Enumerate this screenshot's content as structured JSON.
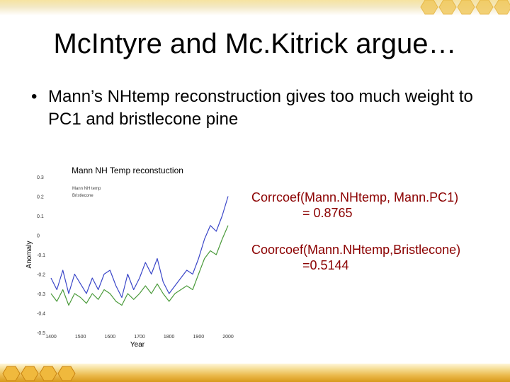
{
  "slide": {
    "title": "McIntyre and Mc.Kitrick argue…",
    "bullet": {
      "marker": "•",
      "text": "Mann’s NHtemp reconstruction gives too much weight to PC1 and bristlecone pine"
    },
    "stats": [
      {
        "label": "Corrcoef(Mann.NHtemp, Mann.PC1)",
        "value": "= 0.8765"
      },
      {
        "label": "Coorcoef(Mann.NHtemp,Bristlecone)",
        "value": "=0.5144"
      }
    ]
  },
  "chart_data": {
    "type": "line",
    "title": "Mann NH Temp reconstuction",
    "xlabel": "Year",
    "ylabel": "Anomaly",
    "xlim": [
      1400,
      2000
    ],
    "ylim": [
      -0.5,
      0.3
    ],
    "x_ticks": [
      "1400",
      "1500",
      "1600",
      "1700",
      "1800",
      "1900",
      "2000"
    ],
    "y_ticks": [
      "0.3",
      "0.2",
      "0.1",
      "0",
      "-0.1",
      "-0.2",
      "-0.3",
      "-0.4",
      "-0.5"
    ],
    "legend": [
      "Mann NH temp",
      "Bristlecone"
    ],
    "series": [
      {
        "name": "Mann NH temp",
        "color": "#3a46c8",
        "x": [
          1400,
          1420,
          1440,
          1460,
          1480,
          1500,
          1520,
          1540,
          1560,
          1580,
          1600,
          1620,
          1640,
          1660,
          1680,
          1700,
          1720,
          1740,
          1760,
          1780,
          1800,
          1820,
          1840,
          1860,
          1880,
          1900,
          1920,
          1940,
          1960,
          1980,
          2000
        ],
        "values": [
          -0.22,
          -0.28,
          -0.18,
          -0.3,
          -0.2,
          -0.25,
          -0.3,
          -0.22,
          -0.28,
          -0.2,
          -0.18,
          -0.26,
          -0.32,
          -0.2,
          -0.28,
          -0.22,
          -0.14,
          -0.2,
          -0.12,
          -0.24,
          -0.3,
          -0.26,
          -0.22,
          -0.18,
          -0.2,
          -0.12,
          -0.02,
          0.05,
          0.02,
          0.1,
          0.2
        ]
      },
      {
        "name": "Bristlecone",
        "color": "#4a9a3a",
        "x": [
          1400,
          1420,
          1440,
          1460,
          1480,
          1500,
          1520,
          1540,
          1560,
          1580,
          1600,
          1620,
          1640,
          1660,
          1680,
          1700,
          1720,
          1740,
          1760,
          1780,
          1800,
          1820,
          1840,
          1860,
          1880,
          1900,
          1920,
          1940,
          1960,
          1980,
          2000
        ],
        "values": [
          -0.3,
          -0.34,
          -0.28,
          -0.36,
          -0.3,
          -0.32,
          -0.35,
          -0.3,
          -0.33,
          -0.28,
          -0.3,
          -0.34,
          -0.36,
          -0.3,
          -0.33,
          -0.3,
          -0.26,
          -0.3,
          -0.25,
          -0.3,
          -0.34,
          -0.3,
          -0.28,
          -0.26,
          -0.28,
          -0.2,
          -0.12,
          -0.08,
          -0.1,
          -0.02,
          0.05
        ]
      }
    ]
  }
}
